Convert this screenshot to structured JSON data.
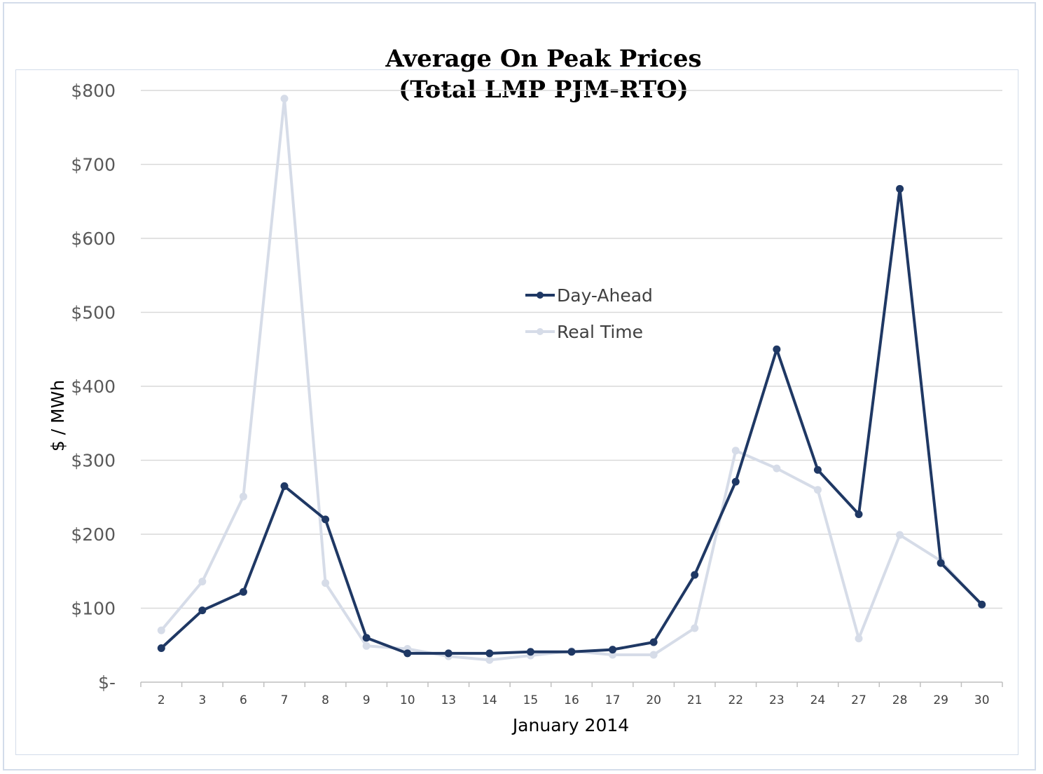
{
  "chart_data": {
    "type": "line",
    "title_line1": "Average On Peak Prices",
    "title_line2": "(Total LMP PJM-RTO)",
    "xlabel": "January 2014",
    "ylabel": "$ / MWh",
    "ylim": [
      0,
      800
    ],
    "yticks": [
      {
        "value": 0,
        "label": "$-"
      },
      {
        "value": 100,
        "label": "$100"
      },
      {
        "value": 200,
        "label": "$200"
      },
      {
        "value": 300,
        "label": "$300"
      },
      {
        "value": 400,
        "label": "$400"
      },
      {
        "value": 500,
        "label": "$500"
      },
      {
        "value": 600,
        "label": "$600"
      },
      {
        "value": 700,
        "label": "$700"
      },
      {
        "value": 800,
        "label": "$800"
      }
    ],
    "categories": [
      "2",
      "3",
      "6",
      "7",
      "8",
      "9",
      "10",
      "13",
      "14",
      "15",
      "16",
      "17",
      "20",
      "21",
      "22",
      "23",
      "24",
      "27",
      "28",
      "29",
      "30"
    ],
    "grid": true,
    "legend_position": "center",
    "series": [
      {
        "name": "Real Time",
        "color": "#d6dce8",
        "values": [
          70,
          136,
          251,
          789,
          134,
          49,
          45,
          35,
          30,
          36,
          42,
          37,
          37,
          73,
          313,
          289,
          260,
          59,
          199,
          164,
          104
        ]
      },
      {
        "name": "Day-Ahead",
        "color": "#1f3864",
        "values": [
          46,
          97,
          122,
          265,
          220,
          60,
          39,
          39,
          39,
          41,
          41,
          44,
          54,
          145,
          271,
          450,
          287,
          227,
          667,
          161,
          105
        ]
      }
    ]
  }
}
